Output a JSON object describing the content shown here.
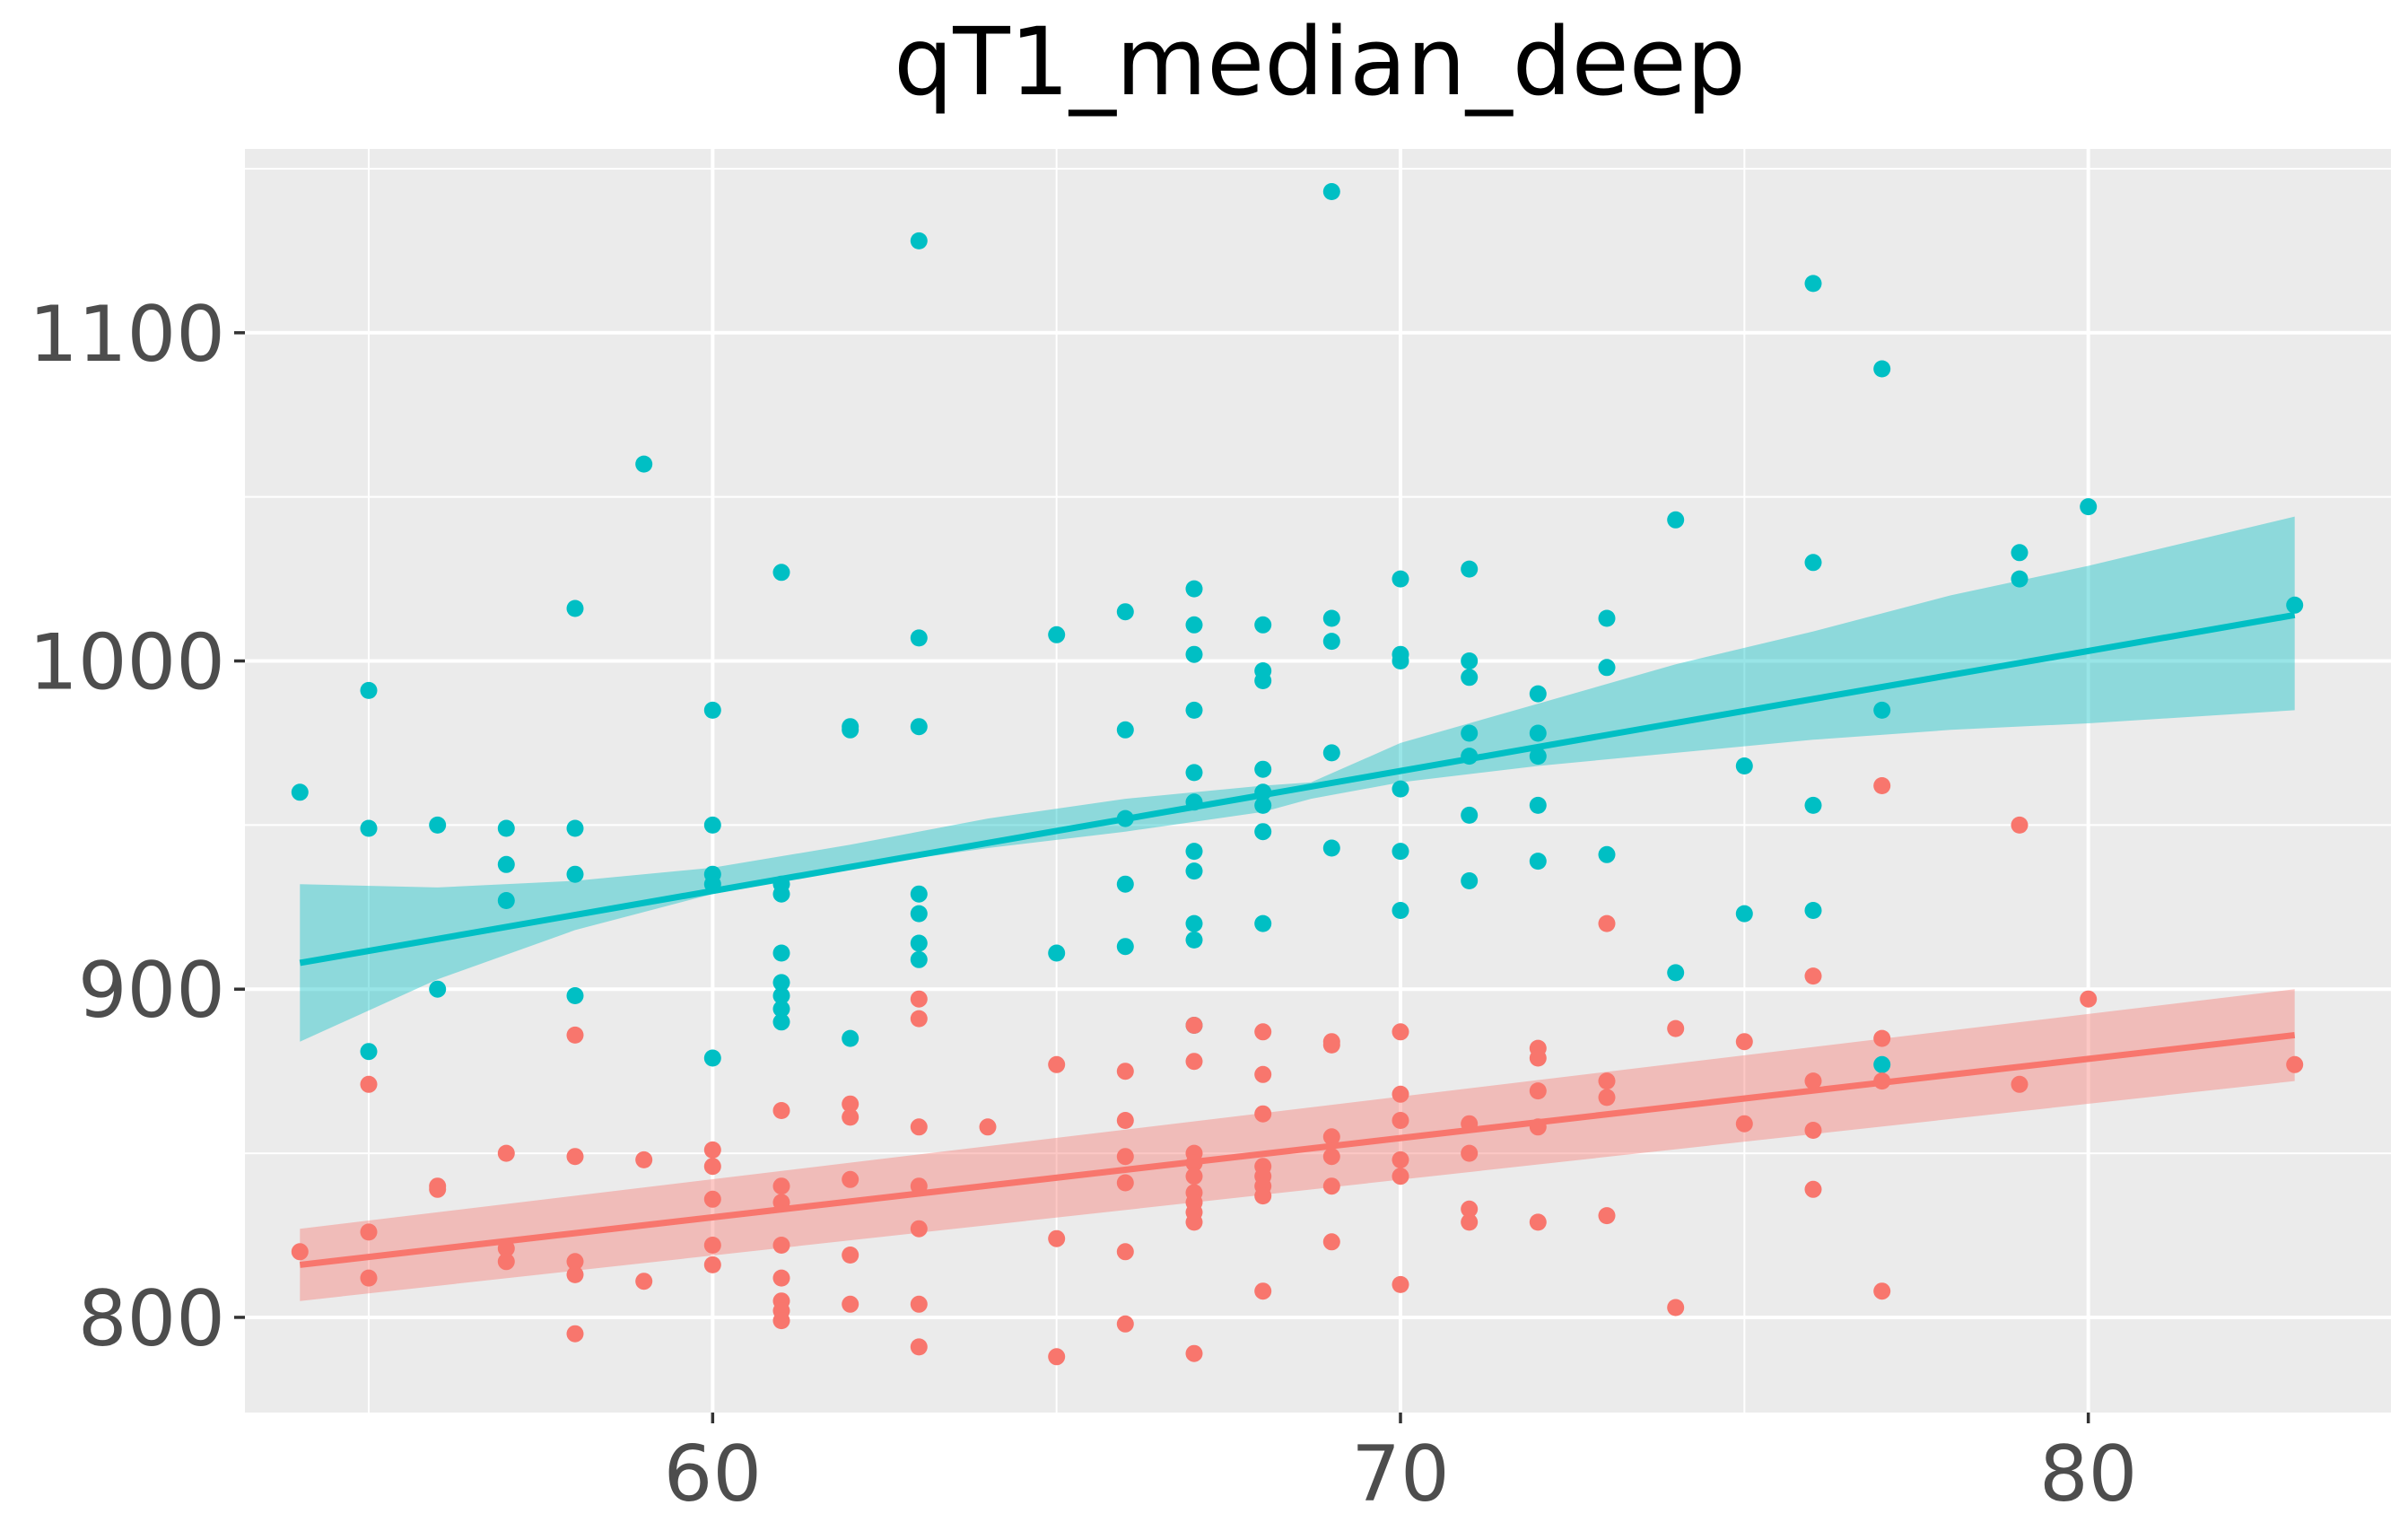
{
  "chart_data": {
    "type": "scatter",
    "title": "qT1_median_deep",
    "xlabel": "",
    "ylabel": "",
    "xlim": [
      53.2,
      84.4
    ],
    "ylim": [
      771,
      1156
    ],
    "x_major_ticks": [
      60,
      70,
      80
    ],
    "x_minor_ticks": [
      55,
      65,
      75
    ],
    "y_major_ticks": [
      800,
      900,
      1000,
      1100
    ],
    "y_minor_ticks": [
      850,
      950,
      1050,
      1150
    ],
    "grid": true,
    "legend": "none",
    "series": [
      {
        "color": "#00BFC4",
        "points": [
          [
            54,
            960
          ],
          [
            55,
            991
          ],
          [
            55,
            949
          ],
          [
            55,
            881
          ],
          [
            56,
            950
          ],
          [
            56,
            900
          ],
          [
            57,
            949
          ],
          [
            57,
            938
          ],
          [
            57,
            927
          ],
          [
            58,
            1016
          ],
          [
            58,
            949
          ],
          [
            58,
            935
          ],
          [
            58,
            898
          ],
          [
            59,
            1060
          ],
          [
            60,
            985
          ],
          [
            60,
            950
          ],
          [
            60,
            935
          ],
          [
            60,
            932
          ],
          [
            60,
            879
          ],
          [
            61,
            1027
          ],
          [
            61,
            932
          ],
          [
            61,
            929
          ],
          [
            61,
            911
          ],
          [
            61,
            902
          ],
          [
            61,
            898
          ],
          [
            61,
            894
          ],
          [
            61,
            890
          ],
          [
            62,
            980
          ],
          [
            62,
            979
          ],
          [
            62,
            885
          ],
          [
            63,
            1128
          ],
          [
            63,
            1007
          ],
          [
            63,
            980
          ],
          [
            63,
            929
          ],
          [
            63,
            923
          ],
          [
            63,
            914
          ],
          [
            63,
            909
          ],
          [
            65,
            1008
          ],
          [
            65,
            911
          ],
          [
            66,
            1015
          ],
          [
            66,
            979
          ],
          [
            66,
            952
          ],
          [
            66,
            932
          ],
          [
            66,
            913
          ],
          [
            67,
            1022
          ],
          [
            67,
            1011
          ],
          [
            67,
            1002
          ],
          [
            67,
            985
          ],
          [
            67,
            966
          ],
          [
            67,
            957
          ],
          [
            67,
            942
          ],
          [
            67,
            936
          ],
          [
            67,
            920
          ],
          [
            67,
            915
          ],
          [
            67,
            889
          ],
          [
            68,
            1011
          ],
          [
            68,
            997
          ],
          [
            68,
            994
          ],
          [
            68,
            967
          ],
          [
            68,
            960
          ],
          [
            68,
            956
          ],
          [
            68,
            948
          ],
          [
            68,
            920
          ],
          [
            69,
            1143
          ],
          [
            69,
            1013
          ],
          [
            69,
            1006
          ],
          [
            69,
            972
          ],
          [
            69,
            943
          ],
          [
            70,
            1025
          ],
          [
            70,
            1002
          ],
          [
            70,
            1000
          ],
          [
            70,
            961
          ],
          [
            70,
            942
          ],
          [
            70,
            924
          ],
          [
            71,
            1028
          ],
          [
            71,
            1000
          ],
          [
            71,
            995
          ],
          [
            71,
            978
          ],
          [
            71,
            971
          ],
          [
            71,
            953
          ],
          [
            71,
            933
          ],
          [
            72,
            990
          ],
          [
            72,
            978
          ],
          [
            72,
            971
          ],
          [
            72,
            956
          ],
          [
            72,
            939
          ],
          [
            73,
            1013
          ],
          [
            73,
            998
          ],
          [
            73,
            941
          ],
          [
            74,
            1043
          ],
          [
            74,
            905
          ],
          [
            75,
            968
          ],
          [
            75,
            923
          ],
          [
            76,
            1115
          ],
          [
            76,
            1030
          ],
          [
            76,
            956
          ],
          [
            76,
            924
          ],
          [
            77,
            1089
          ],
          [
            77,
            985
          ],
          [
            77,
            877
          ],
          [
            79,
            1033
          ],
          [
            79,
            1025
          ],
          [
            80,
            1047
          ],
          [
            83,
            1017
          ]
        ],
        "fit": {
          "x": [
            54,
            83
          ],
          "y": [
            908,
            1014
          ]
        },
        "ribbon": {
          "x": [
            54,
            56,
            58,
            60,
            62,
            64,
            66,
            68,
            68.7,
            70,
            72,
            74,
            76,
            78,
            80,
            83
          ],
          "lower": [
            884,
            903,
            918,
            929,
            937,
            943,
            948,
            954,
            958,
            963,
            968,
            972,
            976,
            979,
            981,
            985
          ],
          "upper": [
            932,
            931,
            933,
            937,
            944,
            952,
            958,
            962,
            963,
            975,
            987,
            999,
            1009,
            1020,
            1029,
            1044
          ]
        }
      },
      {
        "color": "#F8766D",
        "points": [
          [
            54,
            820
          ],
          [
            55,
            871
          ],
          [
            55,
            826
          ],
          [
            55,
            812
          ],
          [
            56,
            840
          ],
          [
            56,
            839
          ],
          [
            57,
            850
          ],
          [
            57,
            821
          ],
          [
            57,
            817
          ],
          [
            58,
            886
          ],
          [
            58,
            849
          ],
          [
            58,
            817
          ],
          [
            58,
            813
          ],
          [
            58,
            795
          ],
          [
            59,
            848
          ],
          [
            59,
            811
          ],
          [
            60,
            851
          ],
          [
            60,
            846
          ],
          [
            60,
            836
          ],
          [
            60,
            822
          ],
          [
            60,
            816
          ],
          [
            61,
            863
          ],
          [
            61,
            840
          ],
          [
            61,
            835
          ],
          [
            61,
            822
          ],
          [
            61,
            812
          ],
          [
            61,
            805
          ],
          [
            61,
            802
          ],
          [
            61,
            799
          ],
          [
            62,
            865
          ],
          [
            62,
            861
          ],
          [
            62,
            842
          ],
          [
            62,
            819
          ],
          [
            62,
            804
          ],
          [
            63,
            897
          ],
          [
            63,
            891
          ],
          [
            63,
            858
          ],
          [
            63,
            840
          ],
          [
            63,
            827
          ],
          [
            63,
            804
          ],
          [
            63,
            791
          ],
          [
            64,
            858
          ],
          [
            65,
            877
          ],
          [
            65,
            824
          ],
          [
            65,
            788
          ],
          [
            66,
            875
          ],
          [
            66,
            860
          ],
          [
            66,
            849
          ],
          [
            66,
            841
          ],
          [
            66,
            820
          ],
          [
            66,
            798
          ],
          [
            67,
            889
          ],
          [
            67,
            878
          ],
          [
            67,
            850
          ],
          [
            67,
            847
          ],
          [
            67,
            843
          ],
          [
            67,
            838
          ],
          [
            67,
            835
          ],
          [
            67,
            832
          ],
          [
            67,
            829
          ],
          [
            67,
            789
          ],
          [
            68,
            887
          ],
          [
            68,
            874
          ],
          [
            68,
            862
          ],
          [
            68,
            846
          ],
          [
            68,
            843
          ],
          [
            68,
            840
          ],
          [
            68,
            837
          ],
          [
            68,
            808
          ],
          [
            69,
            884
          ],
          [
            69,
            883
          ],
          [
            69,
            855
          ],
          [
            69,
            849
          ],
          [
            69,
            840
          ],
          [
            69,
            823
          ],
          [
            70,
            887
          ],
          [
            70,
            868
          ],
          [
            70,
            860
          ],
          [
            70,
            848
          ],
          [
            70,
            843
          ],
          [
            70,
            810
          ],
          [
            71,
            859
          ],
          [
            71,
            850
          ],
          [
            71,
            833
          ],
          [
            71,
            829
          ],
          [
            72,
            882
          ],
          [
            72,
            879
          ],
          [
            72,
            869
          ],
          [
            72,
            858
          ],
          [
            72,
            829
          ],
          [
            73,
            920
          ],
          [
            73,
            872
          ],
          [
            73,
            867
          ],
          [
            73,
            831
          ],
          [
            74,
            888
          ],
          [
            74,
            803
          ],
          [
            75,
            884
          ],
          [
            75,
            859
          ],
          [
            76,
            904
          ],
          [
            76,
            872
          ],
          [
            76,
            857
          ],
          [
            76,
            839
          ],
          [
            77,
            962
          ],
          [
            77,
            885
          ],
          [
            77,
            872
          ],
          [
            77,
            808
          ],
          [
            79,
            950
          ],
          [
            79,
            871
          ],
          [
            80,
            897
          ],
          [
            83,
            877
          ]
        ],
        "fit": {
          "x": [
            54,
            83
          ],
          "y": [
            816,
            886
          ]
        },
        "ribbon": {
          "x": [
            54,
            83
          ],
          "lower": [
            805,
            872
          ],
          "upper": [
            827,
            900
          ]
        }
      }
    ]
  }
}
